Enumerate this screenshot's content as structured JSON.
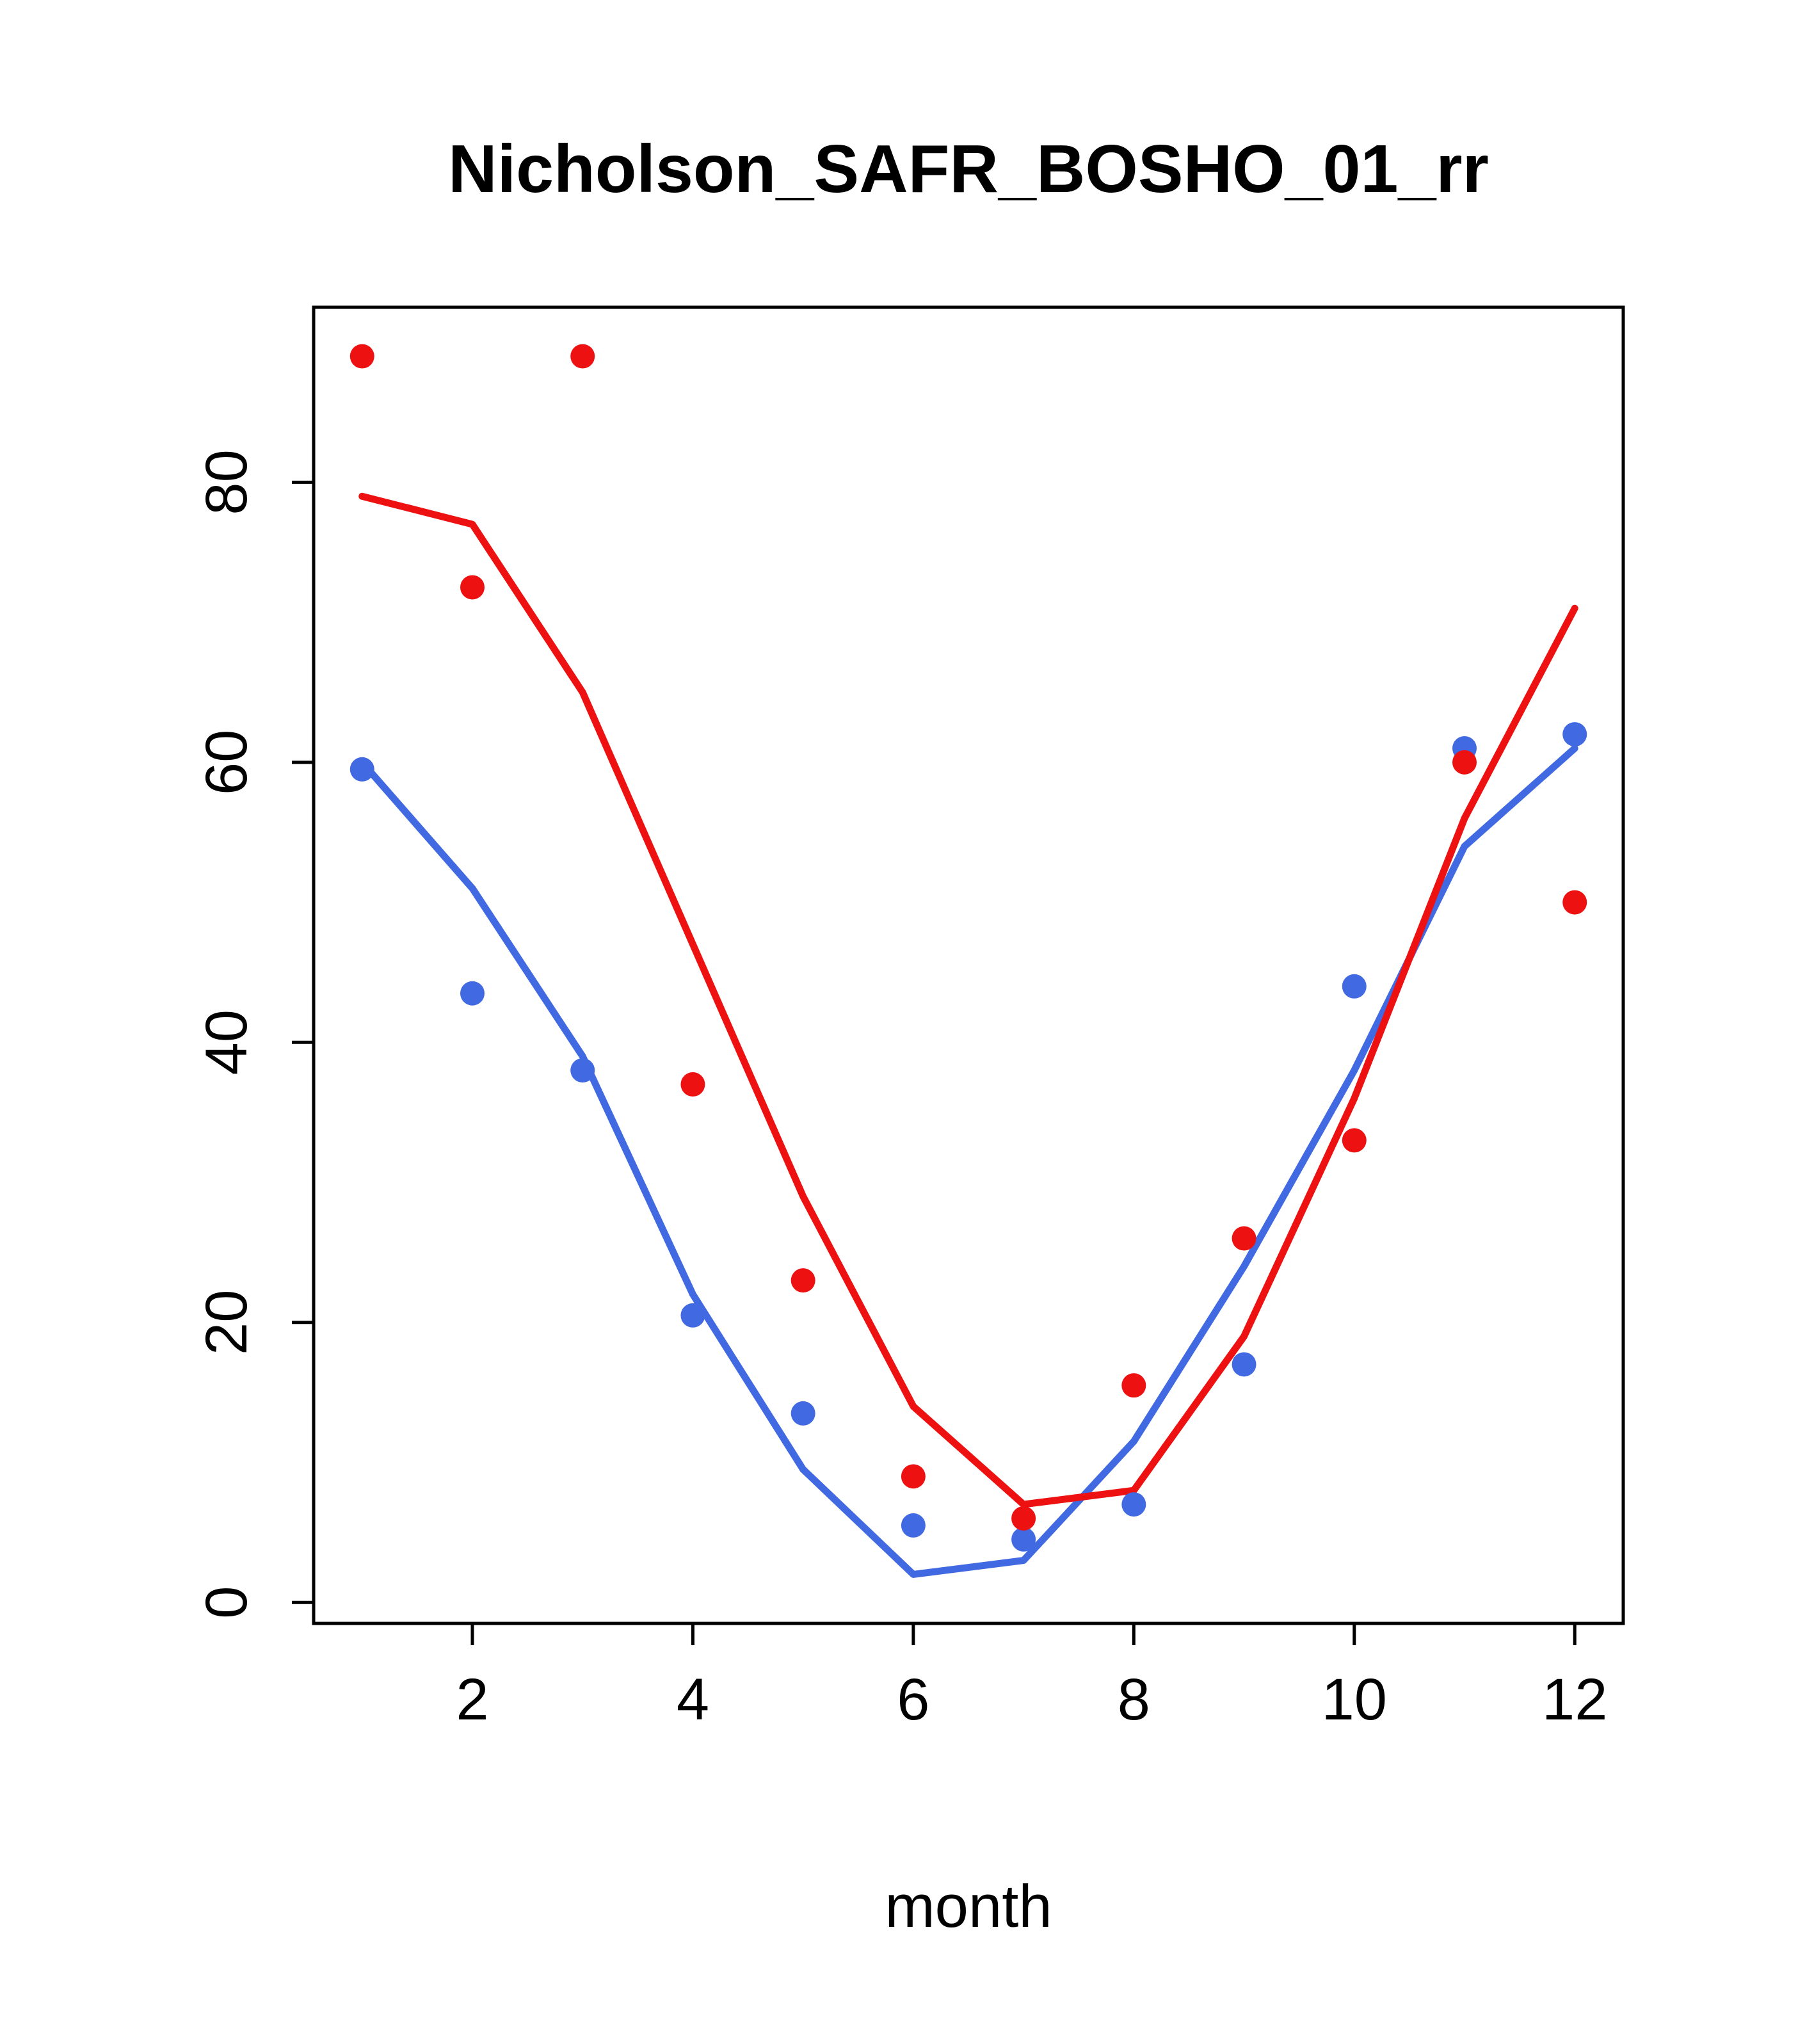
{
  "title": "Nicholson_SAFR_BOSHO_01_rr",
  "xlabel": "month",
  "chart_data": {
    "type": "line",
    "title": "Nicholson_SAFR_BOSHO_01_rr",
    "xlabel": "month",
    "ylabel": "",
    "x": [
      1,
      2,
      3,
      4,
      5,
      6,
      7,
      8,
      9,
      10,
      11,
      12
    ],
    "x_ticks": [
      2,
      4,
      6,
      8,
      10,
      12
    ],
    "y_ticks": [
      0,
      20,
      40,
      60,
      80
    ],
    "xlim": [
      0.56,
      12.44
    ],
    "ylim": [
      -1.5,
      92.5
    ],
    "grid": false,
    "legend": "none",
    "colors": {
      "red": "#EE1111",
      "blue": "#4169E1"
    },
    "series": [
      {
        "name": "blue-line",
        "type": "line",
        "color": "blue",
        "values": [
          60,
          51,
          39,
          22,
          9.5,
          2,
          3,
          11.5,
          24,
          38,
          54,
          61
        ]
      },
      {
        "name": "red-line",
        "type": "line",
        "color": "red",
        "values": [
          79,
          77,
          65,
          47,
          29,
          14,
          7,
          8,
          19,
          36,
          56,
          71
        ]
      },
      {
        "name": "blue-points",
        "type": "scatter",
        "color": "blue",
        "values": [
          59.5,
          43.5,
          38,
          20.5,
          13.5,
          5.5,
          4.5,
          7,
          17,
          44,
          61,
          62
        ]
      },
      {
        "name": "red-points",
        "type": "scatter",
        "color": "red",
        "values": [
          89,
          72.5,
          89,
          37,
          23,
          9,
          6,
          15.5,
          26,
          33,
          60,
          50
        ]
      }
    ]
  }
}
